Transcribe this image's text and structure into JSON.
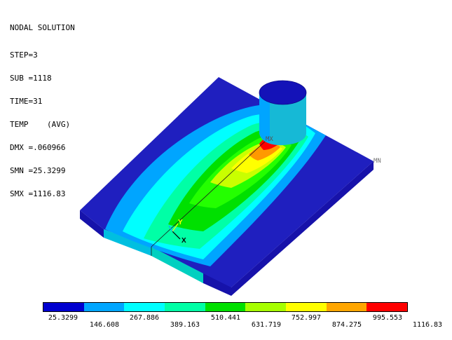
{
  "header": {
    "title": "NODAL SOLUTION",
    "lines": [
      "STEP=3",
      "SUB =1118",
      "TIME=31",
      "TEMP    (AVG)",
      "DMX =.060966",
      "SMN =25.3299",
      "SMX =1116.83"
    ]
  },
  "view": {
    "labels": {
      "max": "MX",
      "min": "MN",
      "y_axis": "Y",
      "x_axis": "X"
    },
    "colors": {
      "plate_blue": "#1f1fbf",
      "plate_side": "#1712aa",
      "hot": "#ff0000",
      "orange": "#ff9900",
      "yellow": "#ffff00",
      "yellow_green": "#c9ff00",
      "green": "#00e000",
      "green_light": "#24ff00",
      "teal": "#00d8b0",
      "cyan": "#00ffff",
      "sky": "#00a5ff",
      "deep": "#1212b5"
    }
  },
  "legend": {
    "colors": [
      "#0000d0",
      "#00a6ff",
      "#00ffff",
      "#00ffa6",
      "#00e000",
      "#a6ff00",
      "#ffff00",
      "#ffa600",
      "#ff0000"
    ],
    "top_values": [
      "25.3299",
      "267.886",
      "510.441",
      "752.997",
      "995.553"
    ],
    "bottom_values": [
      "146.608",
      "389.163",
      "631.719",
      "874.275",
      "1116.83"
    ]
  }
}
